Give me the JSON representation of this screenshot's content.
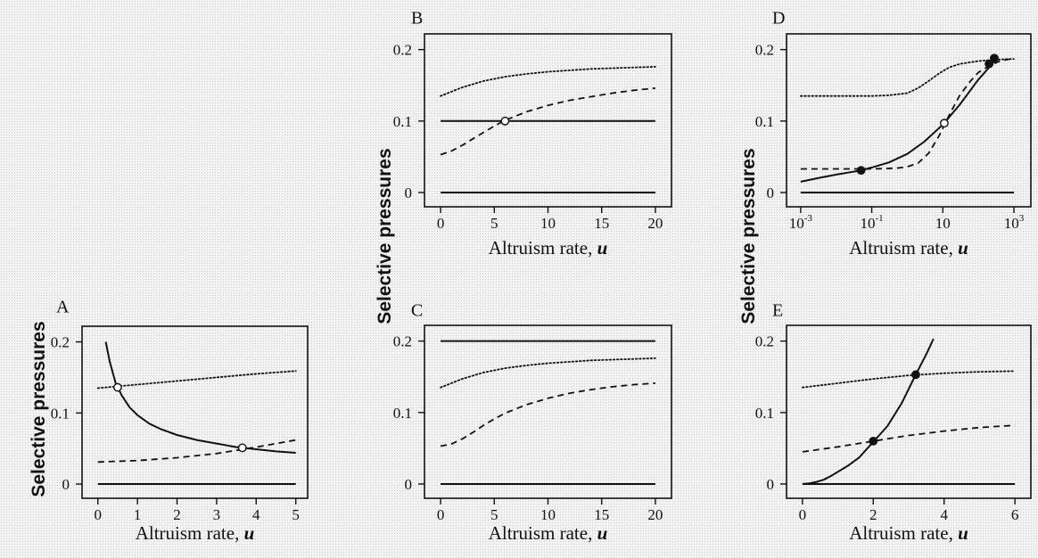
{
  "y_axis_label": "Selective pressures",
  "chart_data": [
    {
      "type": "line",
      "panel": "A",
      "xlabel": "Altruism rate, u",
      "xlim": [
        -0.4,
        5.3
      ],
      "ylim": [
        -0.02,
        0.222
      ],
      "xticks": [
        0,
        1,
        2,
        3,
        4,
        5
      ],
      "xtick_labels": [
        "0",
        "1",
        "2",
        "3",
        "4",
        "5"
      ],
      "yticks": [
        0,
        0.1,
        0.2
      ],
      "ytick_labels": [
        "0",
        "0.1",
        "0.2"
      ],
      "series": [
        {
          "style": "solid",
          "x": [
            0.2,
            0.3,
            0.45,
            0.6,
            0.8,
            1.0,
            1.3,
            1.6,
            2.0,
            2.5,
            3.0,
            3.5,
            4.0,
            4.5,
            5.0
          ],
          "y": [
            0.2,
            0.172,
            0.142,
            0.125,
            0.108,
            0.097,
            0.085,
            0.077,
            0.069,
            0.062,
            0.057,
            0.052,
            0.049,
            0.046,
            0.044
          ]
        },
        {
          "style": "solid",
          "x": [
            0,
            5
          ],
          "y": [
            0,
            0
          ]
        },
        {
          "style": "dotted",
          "x": [
            0,
            1,
            2,
            3,
            4,
            5
          ],
          "y": [
            0.135,
            0.14,
            0.145,
            0.15,
            0.155,
            0.159
          ]
        },
        {
          "style": "dashed",
          "x": [
            0,
            1,
            2,
            3,
            4,
            5
          ],
          "y": [
            0.031,
            0.033,
            0.037,
            0.043,
            0.052,
            0.062
          ]
        }
      ],
      "markers": [
        {
          "x": 0.5,
          "y": 0.136,
          "fill": "open"
        },
        {
          "x": 3.65,
          "y": 0.051,
          "fill": "open"
        }
      ]
    },
    {
      "type": "line",
      "panel": "B",
      "xlabel": "Altruism rate, u",
      "xlim": [
        -1.5,
        21.5
      ],
      "ylim": [
        -0.02,
        0.222
      ],
      "xticks": [
        0,
        5,
        10,
        15,
        20
      ],
      "xtick_labels": [
        "0",
        "5",
        "10",
        "15",
        "20"
      ],
      "yticks": [
        0,
        0.1,
        0.2
      ],
      "ytick_labels": [
        "0",
        "0.1",
        "0.2"
      ],
      "series": [
        {
          "style": "solid",
          "x": [
            0,
            20
          ],
          "y": [
            0.1,
            0.1
          ]
        },
        {
          "style": "solid",
          "x": [
            0,
            20
          ],
          "y": [
            0,
            0
          ]
        },
        {
          "style": "dotted",
          "x": [
            0,
            2,
            4,
            6,
            8,
            10,
            12,
            14,
            16,
            18,
            20
          ],
          "y": [
            0.135,
            0.147,
            0.156,
            0.162,
            0.166,
            0.169,
            0.171,
            0.173,
            0.174,
            0.175,
            0.176
          ]
        },
        {
          "style": "dashed",
          "x": [
            0,
            1,
            2,
            3,
            4,
            5,
            6,
            8,
            10,
            12,
            14,
            16,
            18,
            20
          ],
          "y": [
            0.053,
            0.058,
            0.066,
            0.075,
            0.084,
            0.093,
            0.101,
            0.113,
            0.122,
            0.129,
            0.134,
            0.139,
            0.143,
            0.146
          ]
        }
      ],
      "markers": [
        {
          "x": 6,
          "y": 0.1,
          "fill": "open"
        }
      ]
    },
    {
      "type": "line",
      "panel": "C",
      "xlabel": "Altruism rate, u",
      "xlim": [
        -1.5,
        21.5
      ],
      "ylim": [
        -0.02,
        0.222
      ],
      "xticks": [
        0,
        5,
        10,
        15,
        20
      ],
      "xtick_labels": [
        "0",
        "5",
        "10",
        "15",
        "20"
      ],
      "yticks": [
        0,
        0.1,
        0.2
      ],
      "ytick_labels": [
        "0",
        "0.1",
        "0.2"
      ],
      "series": [
        {
          "style": "solid",
          "x": [
            0,
            20
          ],
          "y": [
            0.2,
            0.2
          ]
        },
        {
          "style": "solid",
          "x": [
            0,
            20
          ],
          "y": [
            0,
            0
          ]
        },
        {
          "style": "dotted",
          "x": [
            0,
            2,
            4,
            6,
            8,
            10,
            12,
            14,
            16,
            18,
            20
          ],
          "y": [
            0.135,
            0.147,
            0.156,
            0.162,
            0.166,
            0.169,
            0.171,
            0.173,
            0.174,
            0.175,
            0.176
          ]
        },
        {
          "style": "dashed",
          "x": [
            0,
            1,
            2,
            3,
            4,
            5,
            6,
            8,
            10,
            12,
            14,
            16,
            18,
            20
          ],
          "y": [
            0.053,
            0.056,
            0.063,
            0.072,
            0.082,
            0.091,
            0.099,
            0.111,
            0.12,
            0.127,
            0.132,
            0.136,
            0.139,
            0.141
          ]
        }
      ],
      "markers": []
    },
    {
      "type": "line",
      "panel": "D",
      "xscale": "log",
      "xlabel": "Altruism rate, u",
      "xlim": [
        0.0004,
        3000
      ],
      "ylim": [
        -0.02,
        0.222
      ],
      "xticks": [
        0.001,
        0.1,
        10,
        1000
      ],
      "xtick_labels": [
        "10",
        "10",
        "10",
        "10"
      ],
      "xtick_exponents": [
        "-3",
        "-1",
        "",
        "3"
      ],
      "yticks": [
        0,
        0.1,
        0.2
      ],
      "ytick_labels": [
        "0",
        "0.1",
        "0.2"
      ],
      "series": [
        {
          "style": "solid",
          "x": [
            0.001,
            0.003,
            0.01,
            0.03,
            0.05,
            0.1,
            0.3,
            1,
            3,
            10,
            30,
            100,
            200,
            300
          ],
          "y": [
            0.015,
            0.02,
            0.025,
            0.029,
            0.031,
            0.035,
            0.042,
            0.054,
            0.071,
            0.095,
            0.123,
            0.158,
            0.175,
            0.186
          ]
        },
        {
          "style": "solid",
          "x": [
            0.001,
            1000
          ],
          "y": [
            0,
            0
          ]
        },
        {
          "style": "dotted",
          "x": [
            0.001,
            0.01,
            0.1,
            0.3,
            1,
            2,
            4,
            8,
            15,
            30,
            100,
            300,
            1000
          ],
          "y": [
            0.135,
            0.135,
            0.135,
            0.136,
            0.139,
            0.146,
            0.156,
            0.167,
            0.175,
            0.18,
            0.184,
            0.186,
            0.187
          ]
        },
        {
          "style": "dashed",
          "x": [
            0.001,
            0.01,
            0.1,
            0.5,
            1,
            2,
            4,
            8,
            15,
            30,
            60,
            100,
            200,
            400,
            1000
          ],
          "y": [
            0.033,
            0.033,
            0.033,
            0.034,
            0.036,
            0.041,
            0.055,
            0.08,
            0.108,
            0.136,
            0.156,
            0.168,
            0.177,
            0.184,
            0.188
          ]
        }
      ],
      "markers": [
        {
          "x": 0.05,
          "y": 0.031,
          "fill": "filled"
        },
        {
          "x": 11,
          "y": 0.097,
          "fill": "open"
        },
        {
          "x": 200,
          "y": 0.18,
          "fill": "filled"
        },
        {
          "x": 280,
          "y": 0.188,
          "fill": "filled"
        }
      ]
    },
    {
      "type": "line",
      "panel": "E",
      "xlabel": "Altruism rate, u",
      "xlim": [
        -0.45,
        6.45
      ],
      "ylim": [
        -0.02,
        0.222
      ],
      "xticks": [
        0,
        2,
        4,
        6
      ],
      "xtick_labels": [
        "0",
        "2",
        "4",
        "6"
      ],
      "yticks": [
        0,
        0.1,
        0.2
      ],
      "ytick_labels": [
        "0",
        "0.1",
        "0.2"
      ],
      "series": [
        {
          "style": "solid",
          "x": [
            0,
            0.2,
            0.4,
            0.6,
            0.8,
            1.0,
            1.3,
            1.6,
            2.0,
            2.4,
            2.8,
            3.2,
            3.5,
            3.7
          ],
          "y": [
            0,
            0.001,
            0.003,
            0.006,
            0.011,
            0.017,
            0.026,
            0.037,
            0.059,
            0.081,
            0.113,
            0.153,
            0.182,
            0.203
          ]
        },
        {
          "style": "solid",
          "x": [
            0,
            6
          ],
          "y": [
            0,
            0
          ]
        },
        {
          "style": "dotted",
          "x": [
            0,
            1,
            2,
            3,
            4,
            5,
            6
          ],
          "y": [
            0.135,
            0.141,
            0.147,
            0.152,
            0.155,
            0.157,
            0.158
          ]
        },
        {
          "style": "dashed",
          "x": [
            0,
            1,
            2,
            3,
            4,
            5,
            6
          ],
          "y": [
            0.045,
            0.052,
            0.06,
            0.068,
            0.074,
            0.079,
            0.082
          ]
        }
      ],
      "markers": [
        {
          "x": 2,
          "y": 0.06,
          "fill": "filled"
        },
        {
          "x": 3.2,
          "y": 0.153,
          "fill": "filled"
        }
      ]
    }
  ]
}
